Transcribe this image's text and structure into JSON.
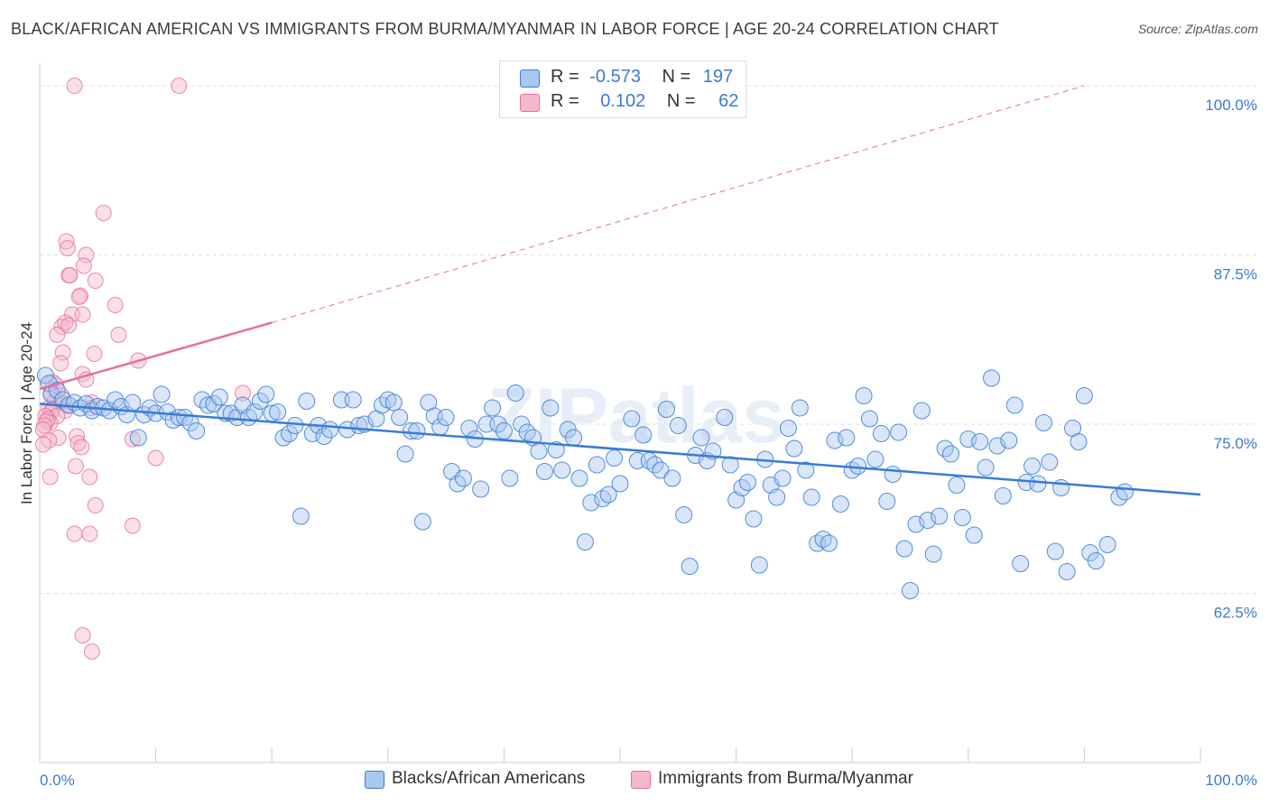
{
  "title": "BLACK/AFRICAN AMERICAN VS IMMIGRANTS FROM BURMA/MYANMAR IN LABOR FORCE | AGE 20-24 CORRELATION CHART",
  "source": "Source: ZipAtlas.com",
  "watermark": "ZIPatlas",
  "legend": {
    "rows": [
      {
        "r_label": "R =",
        "r_value": "-0.573",
        "n_label": "N =",
        "n_value": "197",
        "color": "#a8c8f0"
      },
      {
        "r_label": "R =",
        "r_value": "0.102",
        "n_label": "N =",
        "n_value": "62",
        "color": "#f5b8cb"
      }
    ]
  },
  "bottom_legend": {
    "items": [
      {
        "label": "Blacks/African Americans",
        "color": "#a8c8f0"
      },
      {
        "label": "Immigrants from Burma/Myanmar",
        "color": "#f5b8cb"
      }
    ]
  },
  "colors": {
    "blue": "#3a7bd5",
    "blue_fill": "#a8c8f0",
    "pink": "#e4709a",
    "pink_fill": "#f5b8cb",
    "grid": "#dddddd"
  },
  "chart_data": {
    "type": "scatter",
    "title": "BLACK/AFRICAN AMERICAN VS IMMIGRANTS FROM BURMA/MYANMAR IN LABOR FORCE | AGE 20-24 CORRELATION CHART",
    "xlabel": "",
    "ylabel": "In Labor Force | Age 20-24",
    "xlim": [
      0,
      100
    ],
    "ylim": [
      50,
      101
    ],
    "x_tick_labels": [
      "0.0%",
      "100.0%"
    ],
    "y_ticks": [
      62.5,
      75.0,
      87.5,
      100.0
    ],
    "y_tick_labels": [
      "62.5%",
      "75.0%",
      "87.5%",
      "100.0%"
    ],
    "grid": true,
    "series": [
      {
        "name": "Blacks/African Americans",
        "color": "#3a7bd5",
        "trend": {
          "x": [
            0,
            100
          ],
          "y": [
            76.5,
            69.8
          ]
        },
        "points": [
          [
            0.5,
            78.6
          ],
          [
            0.8,
            78
          ],
          [
            1,
            77.2
          ],
          [
            1.5,
            77.5
          ],
          [
            2,
            76.8
          ],
          [
            2.5,
            76.4
          ],
          [
            3,
            76.6
          ],
          [
            3.5,
            76.2
          ],
          [
            4,
            76.5
          ],
          [
            4.5,
            76
          ],
          [
            5,
            76.3
          ],
          [
            5.5,
            76.2
          ],
          [
            6,
            76
          ],
          [
            6.5,
            76.8
          ],
          [
            7,
            76.3
          ],
          [
            7.5,
            75.7
          ],
          [
            8,
            76.6
          ],
          [
            8.5,
            74
          ],
          [
            9,
            75.7
          ],
          [
            9.5,
            76.2
          ],
          [
            10,
            75.8
          ],
          [
            10.5,
            77.2
          ],
          [
            11,
            75.9
          ],
          [
            11.5,
            75.3
          ],
          [
            12,
            75.5
          ],
          [
            12.5,
            75.5
          ],
          [
            13,
            75.1
          ],
          [
            13.5,
            74.5
          ],
          [
            14,
            76.8
          ],
          [
            14.5,
            76.4
          ],
          [
            15,
            76.5
          ],
          [
            15.5,
            77
          ],
          [
            16,
            75.8
          ],
          [
            16.5,
            75.8
          ],
          [
            17,
            75.5
          ],
          [
            17.5,
            76.4
          ],
          [
            18,
            75.5
          ],
          [
            18.5,
            75.9
          ],
          [
            19,
            76.7
          ],
          [
            19.5,
            77.2
          ],
          [
            20,
            75.8
          ],
          [
            20.5,
            75.9
          ],
          [
            21,
            74
          ],
          [
            21.5,
            74.3
          ],
          [
            22,
            74.9
          ],
          [
            22.5,
            68.2
          ],
          [
            23,
            76.7
          ],
          [
            23.5,
            74.3
          ],
          [
            24,
            74.9
          ],
          [
            24.5,
            74.1
          ],
          [
            25,
            74.6
          ],
          [
            26,
            76.8
          ],
          [
            26.5,
            74.6
          ],
          [
            27,
            76.8
          ],
          [
            27.5,
            74.9
          ],
          [
            28,
            75
          ],
          [
            29,
            75.4
          ],
          [
            29.5,
            76.4
          ],
          [
            30,
            76.8
          ],
          [
            30.5,
            76.6
          ],
          [
            31,
            75.5
          ],
          [
            31.5,
            72.8
          ],
          [
            32,
            74.5
          ],
          [
            32.5,
            74.5
          ],
          [
            33,
            67.8
          ],
          [
            33.5,
            76.6
          ],
          [
            34,
            75.6
          ],
          [
            34.5,
            74.8
          ],
          [
            35,
            75.5
          ],
          [
            35.5,
            71.5
          ],
          [
            36,
            70.6
          ],
          [
            36.5,
            71
          ],
          [
            37,
            74.7
          ],
          [
            37.5,
            73.9
          ],
          [
            38,
            70.2
          ],
          [
            39,
            76.2
          ],
          [
            38.5,
            75
          ],
          [
            39.5,
            75
          ],
          [
            40,
            74.5
          ],
          [
            40.5,
            71
          ],
          [
            41,
            77.3
          ],
          [
            41.5,
            75
          ],
          [
            42,
            74.4
          ],
          [
            42.5,
            74
          ],
          [
            43,
            73
          ],
          [
            43.5,
            71.5
          ],
          [
            44,
            76.2
          ],
          [
            44.5,
            73.1
          ],
          [
            45,
            71.6
          ],
          [
            45.5,
            74.6
          ],
          [
            46,
            74
          ],
          [
            46.5,
            71
          ],
          [
            47,
            66.3
          ],
          [
            47.5,
            69.2
          ],
          [
            48,
            72
          ],
          [
            48.5,
            69.5
          ],
          [
            49,
            69.8
          ],
          [
            49.5,
            72.5
          ],
          [
            50,
            70.6
          ],
          [
            51,
            75.4
          ],
          [
            51.5,
            72.3
          ],
          [
            52,
            74.2
          ],
          [
            52.5,
            72.3
          ],
          [
            53,
            72
          ],
          [
            53.5,
            71.6
          ],
          [
            54,
            76.1
          ],
          [
            54.5,
            71
          ],
          [
            55,
            74.9
          ],
          [
            55.5,
            68.3
          ],
          [
            56,
            64.5
          ],
          [
            56.5,
            72.7
          ],
          [
            57,
            74
          ],
          [
            57.5,
            72.3
          ],
          [
            58,
            73
          ],
          [
            59,
            75.5
          ],
          [
            59.5,
            72
          ],
          [
            60,
            69.4
          ],
          [
            60.5,
            70.3
          ],
          [
            61,
            70.7
          ],
          [
            61.5,
            68
          ],
          [
            62,
            64.6
          ],
          [
            62.5,
            72.4
          ],
          [
            63,
            70.5
          ],
          [
            63.5,
            69.6
          ],
          [
            64,
            71
          ],
          [
            64.5,
            74.7
          ],
          [
            65,
            73.2
          ],
          [
            65.5,
            76.2
          ],
          [
            66,
            71.6
          ],
          [
            66.5,
            69.6
          ],
          [
            67,
            66.2
          ],
          [
            67.5,
            66.5
          ],
          [
            68,
            66.2
          ],
          [
            68.5,
            73.8
          ],
          [
            69,
            69.1
          ],
          [
            69.5,
            74
          ],
          [
            70,
            71.6
          ],
          [
            70.5,
            71.9
          ],
          [
            71,
            77.1
          ],
          [
            71.5,
            75.4
          ],
          [
            72,
            72.4
          ],
          [
            72.5,
            74.3
          ],
          [
            73,
            69.3
          ],
          [
            73.5,
            71.3
          ],
          [
            74,
            74.4
          ],
          [
            74.5,
            65.8
          ],
          [
            75,
            62.7
          ],
          [
            75.5,
            67.6
          ],
          [
            76,
            76
          ],
          [
            76.5,
            67.9
          ],
          [
            77,
            65.4
          ],
          [
            77.5,
            68.2
          ],
          [
            78,
            73.2
          ],
          [
            78.5,
            72.8
          ],
          [
            79,
            70.5
          ],
          [
            79.5,
            68.1
          ],
          [
            80,
            73.9
          ],
          [
            80.5,
            66.8
          ],
          [
            81,
            73.7
          ],
          [
            81.5,
            71.8
          ],
          [
            82,
            78.4
          ],
          [
            82.5,
            73.4
          ],
          [
            83,
            69.7
          ],
          [
            83.5,
            73.8
          ],
          [
            84,
            76.4
          ],
          [
            84.5,
            64.7
          ],
          [
            85,
            70.7
          ],
          [
            85.5,
            71.9
          ],
          [
            86,
            70.6
          ],
          [
            86.5,
            75.1
          ],
          [
            87,
            72.2
          ],
          [
            87.5,
            65.6
          ],
          [
            88,
            70.3
          ],
          [
            88.5,
            64.1
          ],
          [
            89,
            74.7
          ],
          [
            89.5,
            73.7
          ],
          [
            90,
            77.1
          ],
          [
            90.5,
            65.5
          ],
          [
            91,
            64.9
          ],
          [
            92,
            66.1
          ],
          [
            93,
            69.6
          ],
          [
            93.5,
            70
          ]
        ]
      },
      {
        "name": "Immigrants from Burma/Myanmar",
        "color": "#e4709a",
        "trend": {
          "x": [
            0,
            20
          ],
          "y": [
            77.6,
            82.5
          ]
        },
        "trend_extension": {
          "x": [
            20,
            90
          ],
          "y": [
            82.5,
            100
          ]
        },
        "points": [
          [
            3,
            100
          ],
          [
            12,
            100
          ],
          [
            5.5,
            90.6
          ],
          [
            2.3,
            88.5
          ],
          [
            2.4,
            88
          ],
          [
            4,
            87.5
          ],
          [
            3.8,
            86.7
          ],
          [
            2.5,
            86
          ],
          [
            2.6,
            86
          ],
          [
            4.8,
            85.6
          ],
          [
            3.5,
            84.5
          ],
          [
            3.4,
            84.4
          ],
          [
            6.5,
            83.8
          ],
          [
            2.8,
            83.1
          ],
          [
            3.7,
            83.1
          ],
          [
            1.9,
            82.2
          ],
          [
            2.2,
            82.5
          ],
          [
            2.5,
            82.3
          ],
          [
            1.5,
            81.6
          ],
          [
            6.8,
            81.6
          ],
          [
            2,
            80.3
          ],
          [
            4.7,
            80.2
          ],
          [
            8.5,
            79.7
          ],
          [
            1.8,
            79.5
          ],
          [
            3.7,
            78.7
          ],
          [
            4,
            78.3
          ],
          [
            1.1,
            78.1
          ],
          [
            1.4,
            77.9
          ],
          [
            1,
            77.3
          ],
          [
            1.9,
            77.1
          ],
          [
            17.5,
            77.3
          ],
          [
            1.3,
            76.7
          ],
          [
            1.8,
            76.6
          ],
          [
            2.6,
            76.4
          ],
          [
            4.5,
            76.6
          ],
          [
            4.4,
            76.2
          ],
          [
            0.8,
            76.2
          ],
          [
            1.1,
            76.1
          ],
          [
            2.2,
            76
          ],
          [
            1,
            75.9
          ],
          [
            1.5,
            75.6
          ],
          [
            0.5,
            75.6
          ],
          [
            0.7,
            75.4
          ],
          [
            0.9,
            75.1
          ],
          [
            0.6,
            75.2
          ],
          [
            0.4,
            74.9
          ],
          [
            0.3,
            74.6
          ],
          [
            3.2,
            74.1
          ],
          [
            1.6,
            74
          ],
          [
            0.8,
            73.8
          ],
          [
            3.3,
            73.6
          ],
          [
            3.6,
            73.3
          ],
          [
            8,
            73.9
          ],
          [
            10,
            72.5
          ],
          [
            3.1,
            71.9
          ],
          [
            0.9,
            71.1
          ],
          [
            4.3,
            71.1
          ],
          [
            4.8,
            69
          ],
          [
            8,
            67.5
          ],
          [
            3,
            66.9
          ],
          [
            4.3,
            66.9
          ],
          [
            3.7,
            59.4
          ],
          [
            4.5,
            58.2
          ],
          [
            0.3,
            73.5
          ]
        ]
      }
    ]
  }
}
